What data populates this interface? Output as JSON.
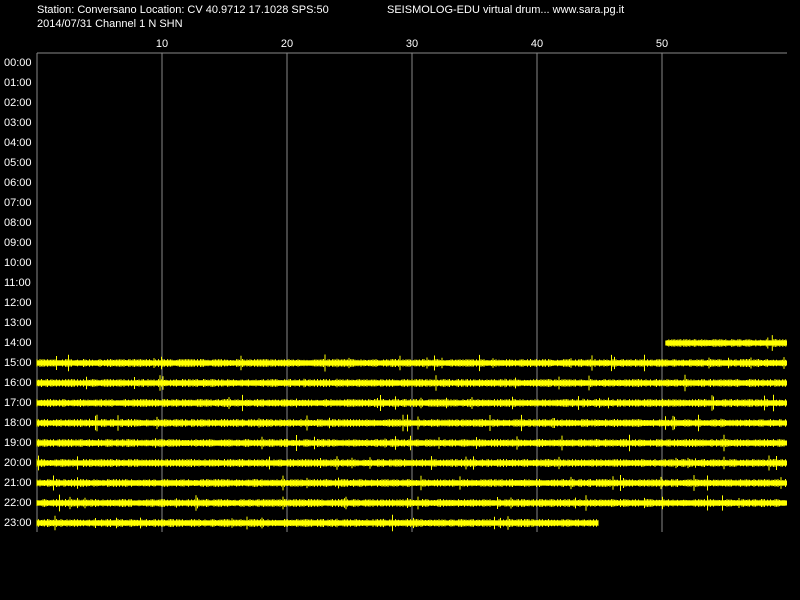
{
  "chart_data": {
    "type": "drum",
    "title": "Station: Conversano Location: CV 40.9712 17.1028 SPS:50",
    "subtitle": "SEISMOLOG-EDU virtual drum... www.sara.pg.it",
    "date_channel": "2014/07/31  Channel 1 N SHN",
    "color": "#ffff00",
    "xlim": [
      0,
      60
    ],
    "xticks": [
      10,
      20,
      30,
      40,
      50
    ],
    "grid": true,
    "categories": [
      "00:00",
      "01:00",
      "02:00",
      "03:00",
      "04:00",
      "05:00",
      "06:00",
      "07:00",
      "08:00",
      "09:00",
      "10:00",
      "11:00",
      "12:00",
      "13:00",
      "14:00",
      "15:00",
      "16:00",
      "17:00",
      "18:00",
      "19:00",
      "20:00",
      "21:00",
      "22:00",
      "23:00"
    ],
    "start": [
      null,
      null,
      null,
      null,
      null,
      null,
      null,
      null,
      null,
      null,
      null,
      null,
      null,
      null,
      50.3,
      0,
      0,
      0,
      0,
      0,
      0,
      0,
      0,
      0
    ],
    "end": [
      null,
      null,
      null,
      null,
      null,
      null,
      null,
      null,
      null,
      null,
      null,
      null,
      null,
      null,
      60,
      60,
      60,
      60,
      60,
      60,
      60,
      60,
      60,
      44.9
    ]
  }
}
